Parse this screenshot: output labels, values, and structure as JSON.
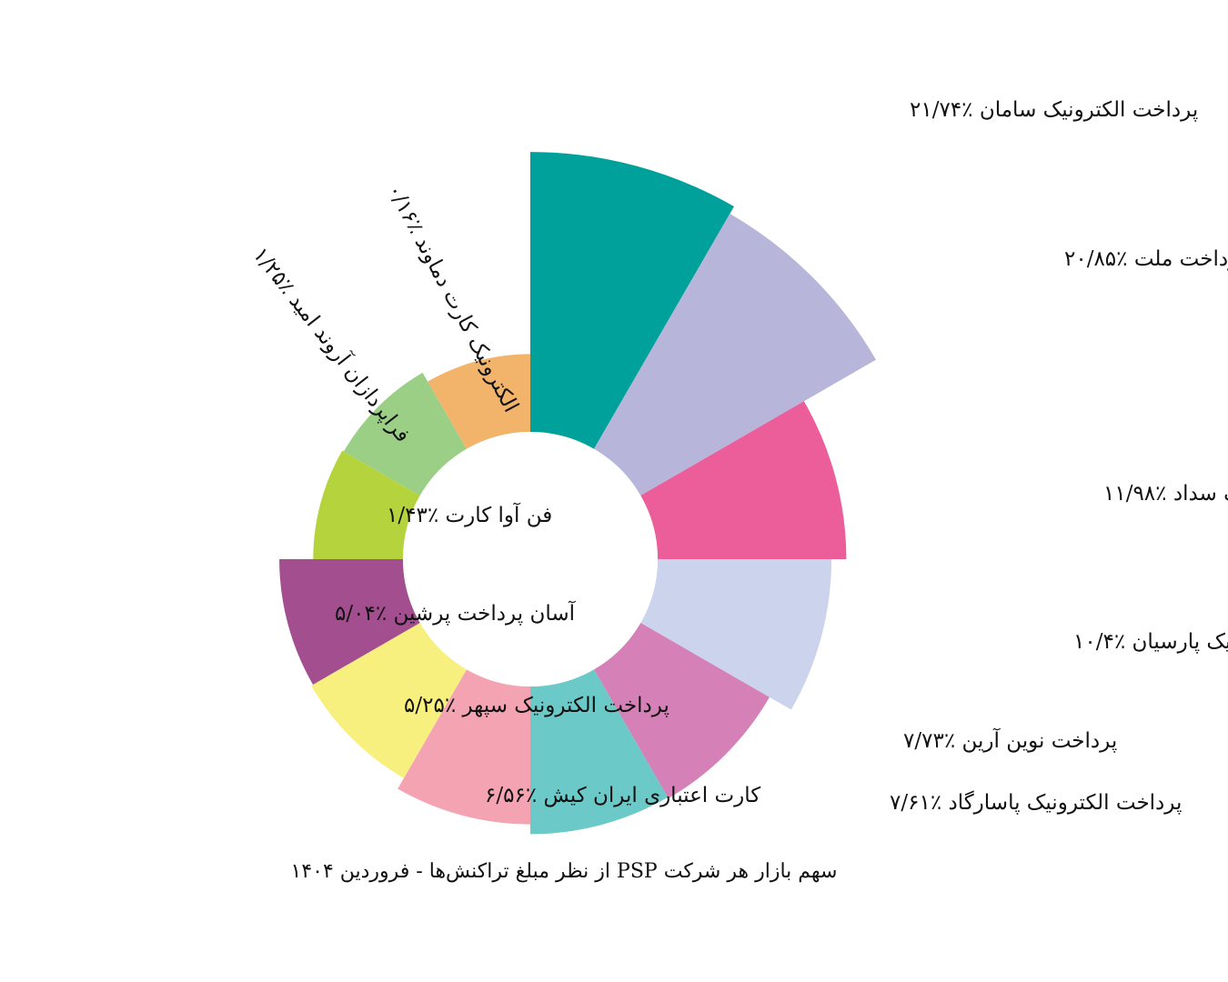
{
  "chart_data": {
    "type": "polar-area",
    "title": "سهم بازار هر شرکت PSP از نظر مبلغ تراکنش‌ها - فروردین ۱۴۰۴",
    "legend": "none",
    "grid": false,
    "categories": [
      {
        "name": "پرداخت الکترونیک سامان",
        "value": 21.74,
        "display": "٪۲۱/۷۴",
        "color": "#00A19B"
      },
      {
        "name": "به پرداخت ملت",
        "value": 20.85,
        "display": "٪۲۰/۸۵",
        "color": "#B8B5DB"
      },
      {
        "name": "پرداخت الکترونیک سداد",
        "value": 11.98,
        "display": "٪۱۱/۹۸",
        "color": "#EB5E9A"
      },
      {
        "name": "تجارت الکترونیک پارسیان",
        "value": 10.4,
        "display": "٪۱۰/۴",
        "color": "#CCD3EC"
      },
      {
        "name": "پرداخت نوین آرین",
        "value": 7.73,
        "display": "٪۷/۷۳",
        "color": "#D580B6"
      },
      {
        "name": "پرداخت الکترونیک پاسارگاد",
        "value": 7.61,
        "display": "٪۷/۶۱",
        "color": "#6BC9C8"
      },
      {
        "name": "کارت اعتباری ایران کیش",
        "value": 6.56,
        "display": "٪۶/۵۶",
        "color": "#F4A3B3"
      },
      {
        "name": "پرداخت الکترونیک سپهر",
        "value": 5.25,
        "display": "٪۵/۲۵",
        "color": "#F7EF7E"
      },
      {
        "name": "آسان پرداخت پرشین",
        "value": 5.04,
        "display": "٪۵/۰۴",
        "color": "#A34E8E"
      },
      {
        "name": "فن آوا کارت",
        "value": 1.43,
        "display": "٪۱/۴۳",
        "color": "#B5D33D"
      },
      {
        "name": "فراپردازان آروند امید",
        "value": 1.25,
        "display": "٪۱/۲۵",
        "color": "#9ACF85"
      },
      {
        "name": "الکترونیک کارت دماوند",
        "value": 0.16,
        "display": "٪۰/۱۶",
        "color": "#F2B36B"
      }
    ]
  }
}
